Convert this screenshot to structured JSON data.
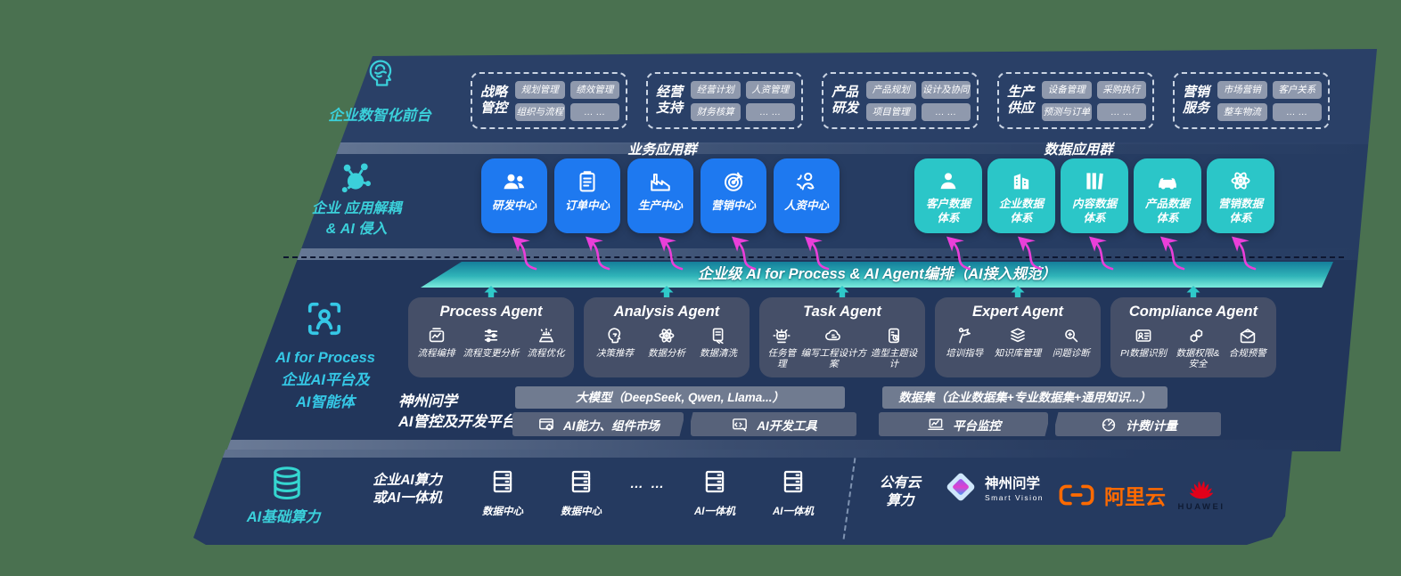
{
  "colors": {
    "accent_teal": "#3BD0DA",
    "box_blue": "#1E79F0",
    "box_teal": "#2BC6C8",
    "arrow_magenta": "#EA3FD9",
    "bar_teal_light": "#7CEBDD",
    "bar_teal_dark": "#157F9B",
    "aliyun_orange": "#FF6A00",
    "huawei_red": "#E2001A"
  },
  "front_office": {
    "label": "企业数智化前台",
    "icon": "brain-head-icon",
    "groups": [
      {
        "title": "战略\n管控",
        "pills": [
          "规划管理",
          "绩效管理",
          "组织与流程",
          "… …"
        ]
      },
      {
        "title": "经营\n支持",
        "pills": [
          "经营计划",
          "人资管理",
          "财务核算",
          "… …"
        ]
      },
      {
        "title": "产品\n研发",
        "pills": [
          "产品规划",
          "设计及协同",
          "项目管理",
          "… …"
        ]
      },
      {
        "title": "生产\n供应",
        "pills": [
          "设备管理",
          "采购执行",
          "预测与订单",
          "… …"
        ]
      },
      {
        "title": "营销\n服务",
        "pills": [
          "市场营销",
          "客户关系",
          "整车物流",
          "… …"
        ]
      }
    ]
  },
  "app_layer": {
    "label": "企业 应用解耦\n& AI 侵入",
    "icon": "molecule-icon",
    "business_group": {
      "title": "业务应用群",
      "boxes": [
        {
          "label": "研发中心",
          "icon": "team-icon"
        },
        {
          "label": "订单中心",
          "icon": "clipboard-icon"
        },
        {
          "label": "生产中心",
          "icon": "factory-icon"
        },
        {
          "label": "营销中心",
          "icon": "target-icon"
        },
        {
          "label": "人资中心",
          "icon": "hr-icon"
        }
      ]
    },
    "data_group": {
      "title": "数据应用群",
      "boxes": [
        {
          "label": "客户数据\n体系",
          "icon": "person-icon"
        },
        {
          "label": "企业数据\n体系",
          "icon": "building-icon"
        },
        {
          "label": "内容数据\n体系",
          "icon": "books-icon"
        },
        {
          "label": "产品数据\n体系",
          "icon": "car-icon"
        },
        {
          "label": "营销数据\n体系",
          "icon": "atom-icon"
        }
      ]
    }
  },
  "orchestration_bar": {
    "label": "企业级 AI for Process & AI Agent编排（AI接入规范）"
  },
  "ai_layer": {
    "label": "AI for Process\n企业AI平台及\nAI智能体",
    "icon": "scan-person-icon",
    "agents": [
      {
        "title": "Process Agent",
        "items": [
          {
            "label": "流程编排",
            "icon": "workflow-icon"
          },
          {
            "label": "流程变更分析",
            "icon": "sliders-icon"
          },
          {
            "label": "流程优化",
            "icon": "optimize-icon"
          }
        ]
      },
      {
        "title": "Analysis Agent",
        "items": [
          {
            "label": "决策推荐",
            "icon": "decision-icon"
          },
          {
            "label": "数据分析",
            "icon": "analysis-atom-icon"
          },
          {
            "label": "数据清洗",
            "icon": "clean-icon"
          }
        ]
      },
      {
        "title": "Task Agent",
        "items": [
          {
            "label": "任务管理",
            "icon": "robot-icon"
          },
          {
            "label": "编写工程设计方案",
            "icon": "cloud-pen-icon"
          },
          {
            "label": "造型主题设计",
            "icon": "design-icon"
          }
        ]
      },
      {
        "title": "Expert Agent",
        "items": [
          {
            "label": "培训指导",
            "icon": "training-icon"
          },
          {
            "label": "知识库管理",
            "icon": "layers-icon"
          },
          {
            "label": "问题诊断",
            "icon": "diagnose-icon"
          }
        ]
      },
      {
        "title": "Compliance Agent",
        "items": [
          {
            "label": "PI数据识别",
            "icon": "id-card-icon"
          },
          {
            "label": "数据权限&\n安全",
            "icon": "link-shield-icon"
          },
          {
            "label": "合规预警",
            "icon": "alert-mail-icon"
          }
        ]
      }
    ],
    "platform": {
      "label": "神州问学\nAI管控及开发平台",
      "model_bar": "大模型（DeepSeek, Qwen, Llama...）",
      "model_buttons": [
        {
          "label": "AI能力、组件市场",
          "icon": "components-icon"
        },
        {
          "label": "AI开发工具",
          "icon": "devtools-icon"
        }
      ],
      "data_bar": "数据集（企业数据集+专业数据集+通用知识...）",
      "data_buttons": [
        {
          "label": "平台监控",
          "icon": "monitor-icon"
        },
        {
          "label": "计费/计量",
          "icon": "meter-icon"
        }
      ]
    }
  },
  "infra_layer": {
    "label": "AI基础算力",
    "icon": "database-icon",
    "compute_label": "企业AI算力\n或AI一体机",
    "nodes": [
      {
        "label": "数据中心",
        "icon": "server-icon"
      },
      {
        "label": "数据中心",
        "icon": "server-icon"
      },
      {
        "label": "… …",
        "icon": null
      },
      {
        "label": "AI一体机",
        "icon": "server-icon"
      },
      {
        "label": "AI一体机",
        "icon": "server-icon"
      }
    ],
    "public_cloud": "公有云\n算力",
    "vendors": [
      {
        "name": "神州问学",
        "sub": "Smart Vision",
        "icon": "smartvision-logo"
      },
      {
        "name": "阿里云",
        "icon": "aliyun-logo"
      },
      {
        "name": "HUAWEI",
        "icon": "huawei-logo"
      }
    ]
  }
}
